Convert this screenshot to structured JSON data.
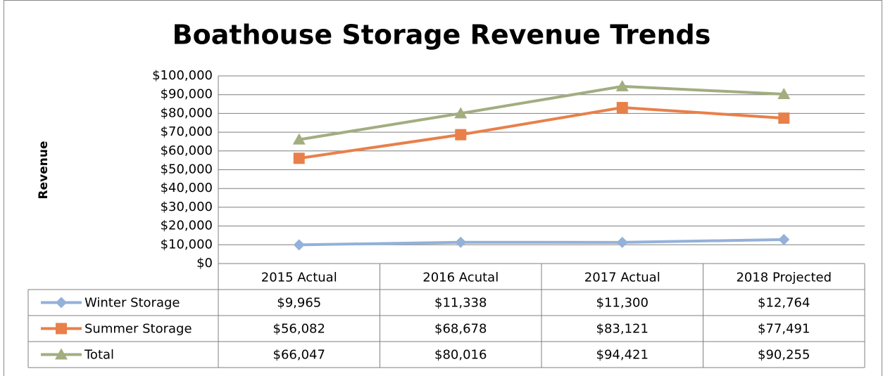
{
  "chart_data": {
    "type": "line",
    "title": "Boathouse Storage Revenue Trends",
    "y_label": "Revenue",
    "categories": [
      "2015 Actual",
      "2016 Acutal",
      "2017 Actual",
      "2018 Projected"
    ],
    "ylim": [
      0,
      100000
    ],
    "yticks": [
      {
        "value": 0,
        "label": "$0"
      },
      {
        "value": 10000,
        "label": "$10,000"
      },
      {
        "value": 20000,
        "label": "$20,000"
      },
      {
        "value": 30000,
        "label": "$30,000"
      },
      {
        "value": 40000,
        "label": "$40,000"
      },
      {
        "value": 50000,
        "label": "$50,000"
      },
      {
        "value": 60000,
        "label": "$60,000"
      },
      {
        "value": 70000,
        "label": "$70,000"
      },
      {
        "value": 80000,
        "label": "$80,000"
      },
      {
        "value": 90000,
        "label": "$90,000"
      },
      {
        "value": 100000,
        "label": "$100,000"
      }
    ],
    "grid": true,
    "series": [
      {
        "name": "Winter Storage",
        "color": "#93b1d9",
        "marker": "diamond",
        "values": [
          9965,
          11338,
          11300,
          12764
        ],
        "value_labels": [
          "$9,965",
          "$11,338",
          "$11,300",
          "$12,764"
        ]
      },
      {
        "name": "Summer Storage",
        "color": "#e8804a",
        "marker": "square",
        "values": [
          56082,
          68678,
          83121,
          77491
        ],
        "value_labels": [
          "$56,082",
          "$68,678",
          "$83,121",
          "$77,491"
        ]
      },
      {
        "name": "Total",
        "color": "#a2ad80",
        "marker": "triangle",
        "values": [
          66047,
          80016,
          94421,
          90255
        ],
        "value_labels": [
          "$66,047",
          "$80,016",
          "$94,421",
          "$90,255"
        ]
      }
    ]
  }
}
